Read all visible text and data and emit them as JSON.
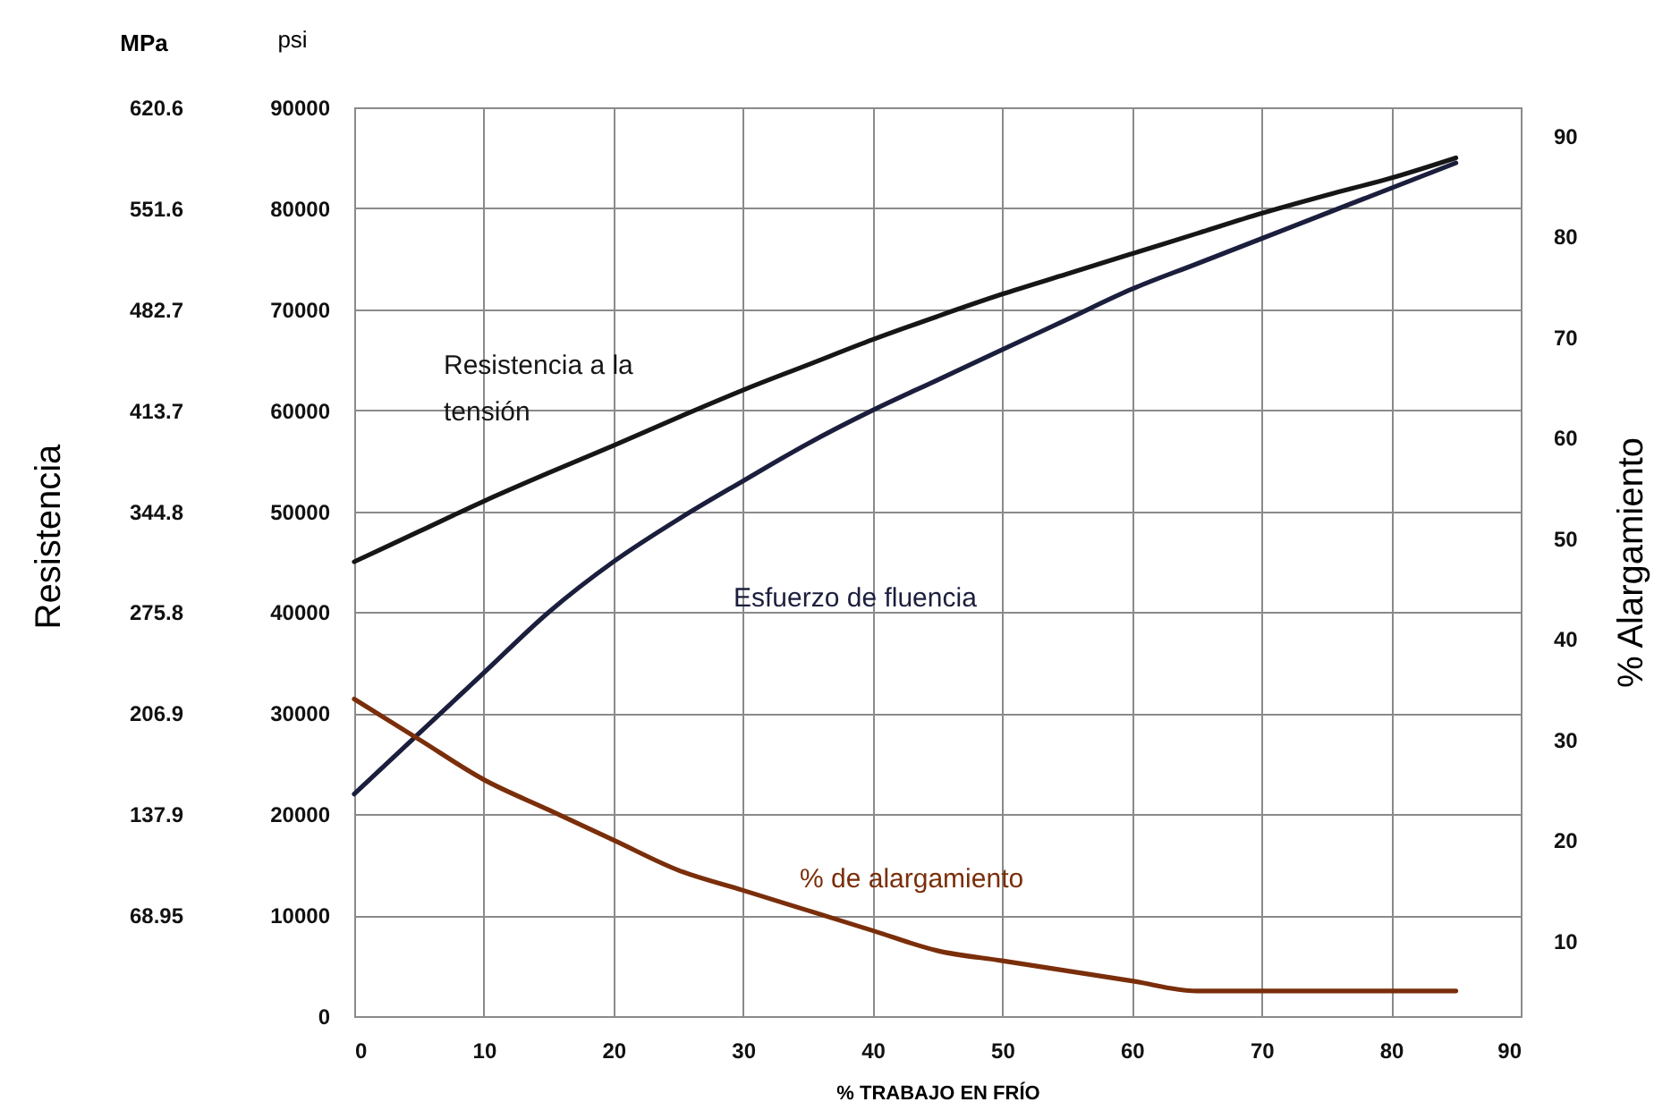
{
  "chart_data": {
    "type": "line",
    "xlabel": "% TRABAJO EN FRÍO",
    "ylabel": "psi",
    "y2label": "% Alargamiento",
    "y3label": "MPa",
    "x": [
      0,
      5,
      10,
      15,
      20,
      25,
      30,
      35,
      40,
      45,
      50,
      55,
      60,
      65,
      70,
      75,
      80,
      85
    ],
    "series": [
      {
        "name": "Resistencia a la tensión",
        "color": "#161616",
        "values": [
          45000,
          48000,
          51000,
          53800,
          56500,
          59300,
          62000,
          64500,
          67000,
          69300,
          71500,
          73500,
          75500,
          77500,
          79500,
          81300,
          83000,
          85000
        ]
      },
      {
        "name": "Esfuerzo de fluencia",
        "color": "#1b1e3c",
        "values": [
          22000,
          28000,
          34000,
          40000,
          45000,
          49200,
          53000,
          56700,
          60000,
          63000,
          66000,
          69000,
          72000,
          74500,
          77000,
          79500,
          82000,
          84500
        ]
      },
      {
        "name": "% de alargamiento",
        "color": "#7a2e0a",
        "axis": "y2",
        "values": [
          34,
          30,
          26,
          23,
          20,
          17,
          15,
          13,
          11,
          9,
          8,
          7,
          6,
          5,
          5,
          5,
          5,
          5
        ]
      }
    ],
    "xlim": [
      0,
      90
    ],
    "xticks": [
      0,
      10,
      20,
      30,
      40,
      50,
      60,
      70,
      80,
      90
    ],
    "ylim": [
      0,
      90000
    ],
    "yticks": [
      0,
      10000,
      20000,
      30000,
      40000,
      50000,
      60000,
      70000,
      80000,
      90000
    ],
    "y2lim": [
      2.5,
      92.8
    ],
    "y2ticks": [
      10,
      20,
      30,
      40,
      50,
      60,
      70,
      80,
      90
    ],
    "y3lim": [
      0,
      620.6
    ],
    "y3ticks": [
      68.95,
      137.9,
      206.9,
      275.8,
      344.8,
      413.7,
      482.7,
      551.6,
      620.6
    ],
    "annotations": [
      "Resistencia"
    ],
    "grid": true,
    "line_style": "solid",
    "marker": "none"
  }
}
